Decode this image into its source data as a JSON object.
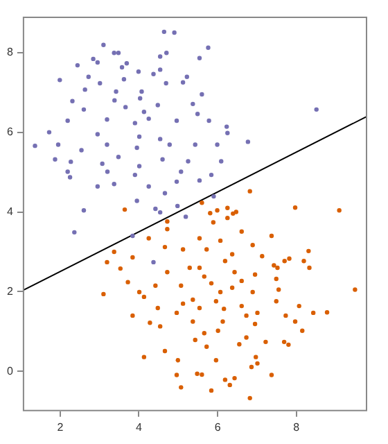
{
  "chart_data": {
    "type": "scatter",
    "xlim": [
      1.05,
      9.8
    ],
    "ylim": [
      -1.0,
      8.9
    ],
    "xticks": [
      2,
      4,
      6,
      8
    ],
    "yticks": [
      0,
      2,
      4,
      6,
      8
    ],
    "grid": false,
    "legend": false,
    "marker": "circle",
    "series": [
      {
        "type": "scatter",
        "color": "#7570b3",
        "x": [
          4.64,
          4.9,
          3.1,
          5.76,
          3.37,
          3.48,
          4.7,
          4.54,
          5.54,
          2.84,
          2.44,
          2.95,
          3.69,
          3.57,
          3.99,
          4.54,
          4.37,
          5.22,
          2.72,
          1.99,
          3.62,
          5.12,
          4.69,
          3.01,
          2.63,
          3.42,
          4.07,
          5.6,
          2.31,
          3.38,
          4.03,
          4.48,
          5.37,
          2.6,
          3.66,
          4.13,
          5.49,
          8.51,
          2.19,
          3.19,
          3.9,
          4.25,
          4.96,
          5.78,
          6.23,
          6.25,
          1.72,
          2.95,
          4.01,
          4.54,
          1.36,
          1.95,
          6.77,
          3.19,
          3.95,
          4.78,
          5.43,
          5.99,
          2.54,
          1.87,
          3.48,
          4.6,
          2.27,
          3.07,
          4.01,
          5.25,
          6.09,
          2.19,
          3.2,
          3.9,
          5.07,
          2.25,
          5.84,
          3.37,
          4.25,
          2.95,
          4.96,
          5.54,
          4.66,
          5.9,
          3.95,
          2.6,
          4.42,
          4.54,
          2.36,
          4.98,
          5.19,
          3.84,
          4.37
        ],
        "values": [
          8.52,
          8.5,
          8.19,
          8.12,
          7.99,
          7.99,
          7.99,
          7.9,
          7.86,
          7.84,
          7.68,
          7.75,
          7.73,
          7.63,
          7.52,
          7.57,
          7.46,
          7.39,
          7.39,
          7.31,
          7.33,
          7.25,
          7.23,
          7.23,
          7.07,
          7.02,
          7.02,
          6.95,
          6.78,
          6.8,
          6.85,
          6.68,
          6.71,
          6.57,
          6.63,
          6.51,
          6.46,
          6.57,
          6.29,
          6.32,
          6.23,
          6.34,
          6.29,
          6.29,
          6.14,
          5.98,
          6.0,
          5.95,
          5.89,
          5.83,
          5.66,
          5.69,
          5.76,
          5.69,
          5.61,
          5.69,
          5.69,
          5.69,
          5.55,
          5.32,
          5.38,
          5.32,
          5.26,
          5.21,
          5.15,
          5.27,
          5.27,
          5.01,
          5.01,
          4.93,
          5.01,
          4.87,
          4.93,
          4.7,
          4.64,
          4.64,
          4.76,
          4.79,
          4.47,
          4.39,
          4.28,
          4.04,
          4.08,
          3.99,
          3.49,
          4.15,
          3.88,
          3.4,
          2.74
        ]
      },
      {
        "type": "scatter",
        "color": "#d95f02",
        "x": [
          3.64,
          5.6,
          6.82,
          5.81,
          5.99,
          6.25,
          6.39,
          6.47,
          7.97,
          9.09,
          3.37,
          3.19,
          3.84,
          3.72,
          3.53,
          3.1,
          3.84,
          4.13,
          4.42,
          4.72,
          4.66,
          4.72,
          4.72,
          5.12,
          5.29,
          5.07,
          5.12,
          4.96,
          4.28,
          4.54,
          4.66,
          4.13,
          4.99,
          4.96,
          5.07,
          5.48,
          5.6,
          5.84,
          5.96,
          5.72,
          5.43,
          5.66,
          6.01,
          6.13,
          6.16,
          5.96,
          6.07,
          6.37,
          6.61,
          6.43,
          6.19,
          6.37,
          6.07,
          5.89,
          6.25,
          6.61,
          6.89,
          7.13,
          7.43,
          7.37,
          6.95,
          6.89,
          7.01,
          6.95,
          6.55,
          6.73,
          6.97,
          7.01,
          6.86,
          6.43,
          6.31,
          6.19,
          6.82,
          7.37,
          7.22,
          7.69,
          7.8,
          8.15,
          7.97,
          8.07,
          7.73,
          7.49,
          7.55,
          7.49,
          7.52,
          7.7,
          7.82,
          8.19,
          8.31,
          8.33,
          8.78,
          8.43,
          9.49,
          5.54,
          5.66,
          5.84,
          5.54,
          5.37,
          5.37,
          6.61,
          6.73,
          5.54,
          5.72,
          4.25,
          4.48,
          4.01
        ],
        "values": [
          4.06,
          4.23,
          4.52,
          3.97,
          4.04,
          4.1,
          3.96,
          4.0,
          4.11,
          4.04,
          3.0,
          2.74,
          2.86,
          2.24,
          2.58,
          1.94,
          1.4,
          1.87,
          2.15,
          2.49,
          3.12,
          3.57,
          3.76,
          3.06,
          2.6,
          2.15,
          1.7,
          1.47,
          1.22,
          1.13,
          0.51,
          0.36,
          0.28,
          -0.09,
          -0.4,
          -0.06,
          -0.08,
          -0.48,
          0.28,
          0.62,
          0.79,
          0.96,
          1.02,
          1.25,
          1.57,
          1.76,
          1.99,
          2.1,
          2.27,
          2.49,
          2.77,
          2.94,
          3.28,
          3.74,
          3.85,
          3.51,
          3.17,
          2.89,
          2.66,
          3.4,
          2.43,
          1.99,
          1.47,
          1.19,
          0.68,
          0.85,
          0.36,
          0.2,
          0.11,
          -0.17,
          -0.34,
          -0.21,
          -0.67,
          -0.09,
          0.74,
          0.74,
          0.67,
          1.02,
          1.25,
          1.64,
          1.4,
          1.76,
          2.05,
          2.32,
          2.6,
          2.77,
          2.83,
          2.77,
          3.02,
          2.6,
          1.48,
          1.47,
          2.05,
          3.34,
          2.38,
          2.21,
          1.59,
          1.25,
          1.8,
          1.64,
          1.4,
          2.6,
          3.06,
          3.34,
          1.59,
          1.99
        ]
      },
      {
        "type": "line",
        "color": "#000000",
        "marker": "none",
        "line_style": "solid",
        "x": [
          1.05,
          9.8
        ],
        "values": [
          2.03,
          6.4
        ]
      }
    ]
  }
}
